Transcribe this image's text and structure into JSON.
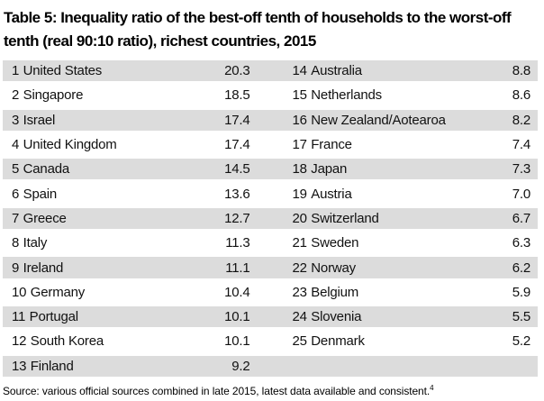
{
  "title": "Table 5: Inequality ratio of the best-off tenth of households to the worst-off tenth (real 90:10 ratio), richest countries, 2015",
  "table": {
    "rows": [
      {
        "left_rank": "1",
        "left_country": "United States",
        "left_value": "20.3",
        "right_rank": "14",
        "right_country": "Australia",
        "right_value": "8.8"
      },
      {
        "left_rank": "2",
        "left_country": "Singapore",
        "left_value": "18.5",
        "right_rank": "15",
        "right_country": "Netherlands",
        "right_value": "8.6"
      },
      {
        "left_rank": "3",
        "left_country": "Israel",
        "left_value": "17.4",
        "right_rank": "16",
        "right_country": "New Zealand/Aotearoa",
        "right_value": "8.2"
      },
      {
        "left_rank": "4",
        "left_country": "United Kingdom",
        "left_value": "17.4",
        "right_rank": "17",
        "right_country": "France",
        "right_value": "7.4"
      },
      {
        "left_rank": "5",
        "left_country": "Canada",
        "left_value": "14.5",
        "right_rank": "18",
        "right_country": "Japan",
        "right_value": "7.3"
      },
      {
        "left_rank": "6",
        "left_country": "Spain",
        "left_value": "13.6",
        "right_rank": "19",
        "right_country": "Austria",
        "right_value": "7.0"
      },
      {
        "left_rank": "7",
        "left_country": "Greece",
        "left_value": "12.7",
        "right_rank": "20",
        "right_country": "Switzerland",
        "right_value": "6.7"
      },
      {
        "left_rank": "8",
        "left_country": "Italy",
        "left_value": "11.3",
        "right_rank": "21",
        "right_country": "Sweden",
        "right_value": "6.3"
      },
      {
        "left_rank": "9",
        "left_country": "Ireland",
        "left_value": "11.1",
        "right_rank": "22",
        "right_country": "Norway",
        "right_value": "6.2"
      },
      {
        "left_rank": "10",
        "left_country": "Germany",
        "left_value": "10.4",
        "right_rank": "23",
        "right_country": "Belgium",
        "right_value": "5.9"
      },
      {
        "left_rank": "11",
        "left_country": "Portugal",
        "left_value": "10.1",
        "right_rank": "24",
        "right_country": "Slovenia",
        "right_value": "5.5"
      },
      {
        "left_rank": "12",
        "left_country": "South Korea",
        "left_value": "10.1",
        "right_rank": "25",
        "right_country": "Denmark",
        "right_value": "5.2"
      },
      {
        "left_rank": "13",
        "left_country": "Finland",
        "left_value": "9.2",
        "right_rank": "",
        "right_country": "",
        "right_value": ""
      }
    ]
  },
  "source_note": {
    "text": "Source: various official sources combined in late 2015, latest data available and consistent.",
    "superscript": "4"
  },
  "colors": {
    "stripe": "#dcdcdc",
    "text": "#111111",
    "background": "#ffffff"
  }
}
